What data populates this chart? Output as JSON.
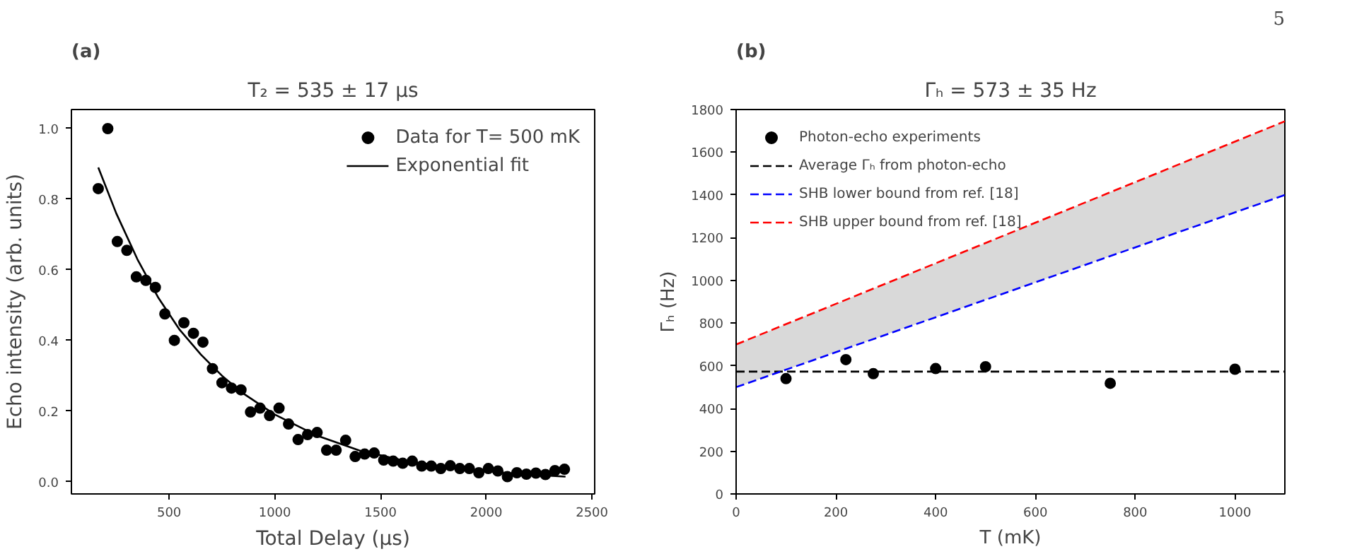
{
  "chart_data": [
    {
      "type": "scatter",
      "title": "T₂ = 535 ± 17 μs",
      "xlabel": "Total Delay (μs)",
      "ylabel": "Echo intensity (arb. units)",
      "annotations": [
        "(a)"
      ],
      "xlim": [
        38,
        2513
      ],
      "ylim": [
        -0.035,
        1.054
      ],
      "xticks": [
        500,
        1000,
        1500,
        2000,
        2500
      ],
      "yticks": [
        {
          "value": 0,
          "label": "0.0"
        },
        {
          "value": 0.2,
          "label": "0.2"
        },
        {
          "value": 0.4,
          "label": "0.4"
        },
        {
          "value": 0.6,
          "label": "0.6"
        },
        {
          "value": 0.8,
          "label": "0.8"
        },
        {
          "value": 1,
          "label": "1.0"
        }
      ],
      "legend": "top right",
      "grid": false,
      "series": [
        {
          "name": "Data for T= 500 mK",
          "type": "scatter",
          "marker": "circle",
          "color": "#000000",
          "x": [
            165,
            210,
            255,
            300,
            345,
            390,
            435,
            480,
            525,
            570,
            615,
            660,
            705,
            750,
            795,
            840,
            885,
            930,
            975,
            1020,
            1065,
            1110,
            1155,
            1200,
            1245,
            1290,
            1335,
            1380,
            1425,
            1470,
            1515,
            1560,
            1605,
            1650,
            1695,
            1740,
            1785,
            1830,
            1875,
            1920,
            1965,
            2010,
            2055,
            2100,
            2145,
            2190,
            2235,
            2280,
            2325,
            2370
          ],
          "values": [
            0.83,
            1.0,
            0.68,
            0.655,
            0.58,
            0.57,
            0.55,
            0.475,
            0.4,
            0.45,
            0.42,
            0.395,
            0.32,
            0.28,
            0.265,
            0.26,
            0.197,
            0.208,
            0.187,
            0.208,
            0.163,
            0.119,
            0.133,
            0.139,
            0.089,
            0.089,
            0.117,
            0.071,
            0.078,
            0.081,
            0.061,
            0.058,
            0.052,
            0.058,
            0.044,
            0.044,
            0.037,
            0.045,
            0.037,
            0.037,
            0.025,
            0.037,
            0.03,
            0.014,
            0.025,
            0.021,
            0.024,
            0.02,
            0.031,
            0.035
          ]
        },
        {
          "name": "Exponential fit",
          "type": "line",
          "color": "#000000",
          "line_style": "solid",
          "x": [
            165,
            250,
            350,
            450,
            550,
            650,
            750,
            850,
            1000,
            1200,
            1400,
            1600,
            1800,
            2000,
            2200,
            2375
          ],
          "values": [
            0.89,
            0.76,
            0.63,
            0.52,
            0.43,
            0.36,
            0.3,
            0.25,
            0.19,
            0.13,
            0.088,
            0.061,
            0.042,
            0.029,
            0.02,
            0.014
          ]
        }
      ]
    },
    {
      "type": "scatter",
      "title": "Γₕ = 573 ± 35 Hz",
      "xlabel": "T (mK)",
      "ylabel": "Γₕ (Hz)",
      "annotations": [
        "(b)",
        "5"
      ],
      "xlim": [
        0,
        1100
      ],
      "ylim": [
        0,
        1800
      ],
      "xticks": [
        0,
        200,
        400,
        600,
        800,
        1000
      ],
      "yticks": [
        0,
        200,
        400,
        600,
        800,
        1000,
        1200,
        1400,
        1600,
        1800
      ],
      "legend": "top left",
      "grid": false,
      "series": [
        {
          "name": "Photon-echo experiments",
          "type": "scatter",
          "marker": "circle",
          "color": "#000000",
          "x": [
            100,
            220,
            275,
            400,
            500,
            750,
            1000
          ],
          "values": [
            540,
            629,
            563,
            587,
            596,
            518,
            584
          ]
        },
        {
          "name": "Average Γₕ from photon-echo",
          "type": "line",
          "color": "#000000",
          "line_style": "dashed",
          "x": [
            0,
            1100
          ],
          "values": [
            573,
            573
          ]
        },
        {
          "name": "SHB lower bound from ref. [18]",
          "type": "line",
          "color": "#0000ff",
          "line_style": "dashed",
          "x": [
            0,
            1100
          ],
          "values": [
            500,
            1400
          ]
        },
        {
          "name": "SHB upper bound from ref. [18]",
          "type": "line",
          "color": "#ff0000",
          "line_style": "dashed",
          "x": [
            0,
            1100
          ],
          "values": [
            700,
            1745
          ],
          "lower": [
            500,
            1400
          ],
          "upper": [
            700,
            1745
          ]
        }
      ]
    }
  ]
}
